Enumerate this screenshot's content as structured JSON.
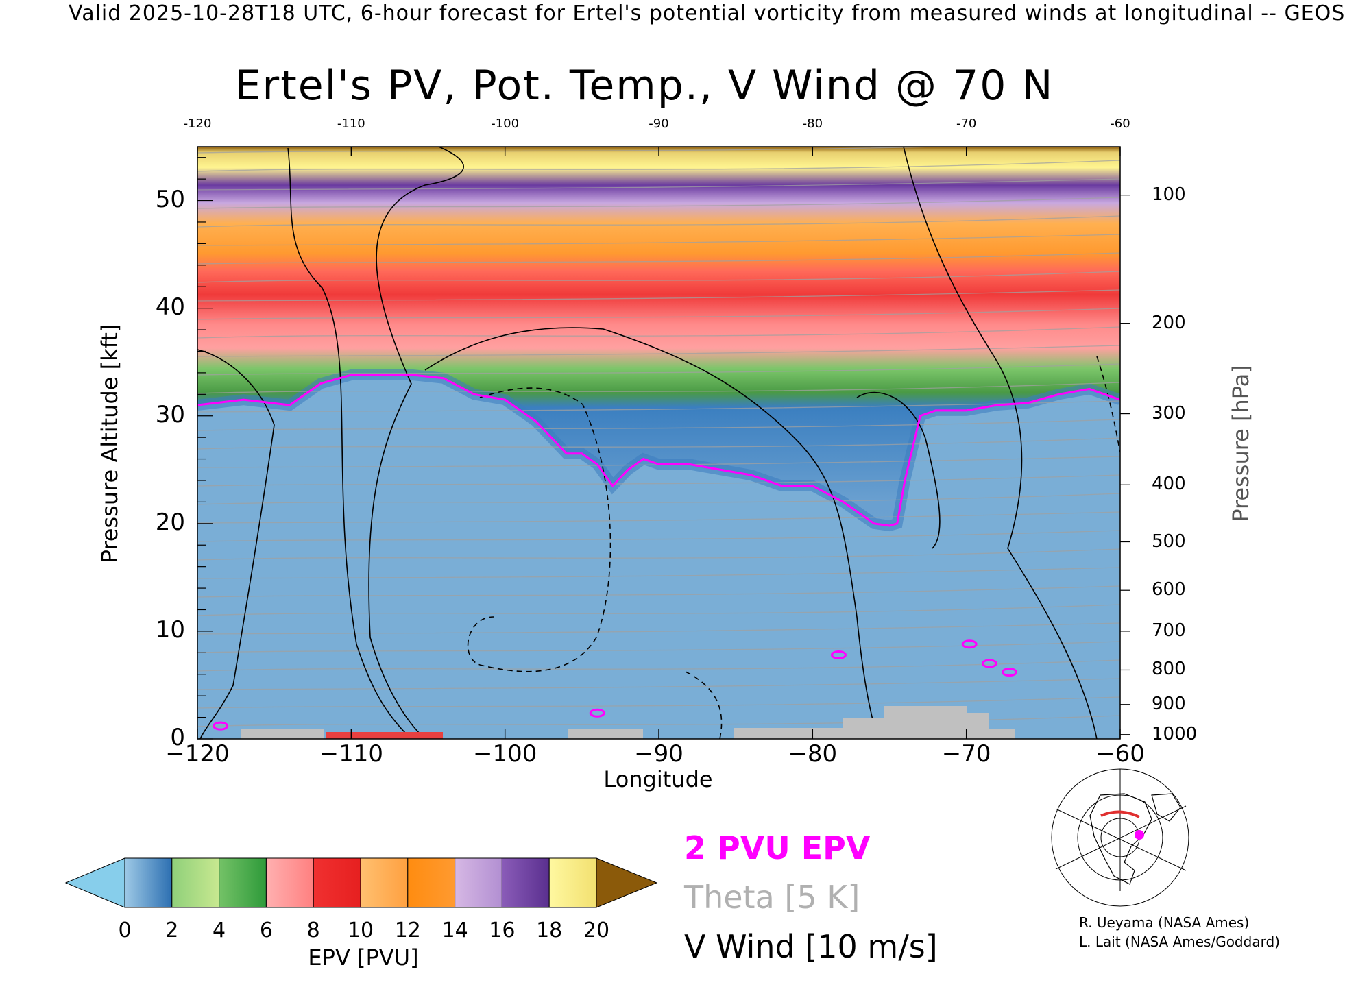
{
  "header": {
    "valid_line": "Valid 2025-10-28T18 UTC, 6-hour forecast for Ertel's potential vorticity from measured winds at longitudinal -- GEOS"
  },
  "chart_data": {
    "type": "heatmap",
    "title": "Ertel's PV, Pot. Temp., V Wind @ 70 N",
    "xlabel": "Longitude",
    "ylabel": "Pressure Altitude [kft]",
    "y2label": "Pressure [hPa]",
    "xlim": [
      -120,
      -60
    ],
    "ylim": [
      0,
      55
    ],
    "x_ticks": [
      -120,
      -110,
      -100,
      -90,
      -80,
      -70,
      -60
    ],
    "x_tick_labels": [
      "−120",
      "−110",
      "−100",
      "−90",
      "−80",
      "−70",
      "−60"
    ],
    "top_tick_labels": [
      "-120",
      "-110",
      "-100",
      "-90",
      "-80",
      "-70",
      "-60"
    ],
    "y_ticks": [
      0,
      10,
      20,
      30,
      40,
      50
    ],
    "y_tick_labels": [
      "0",
      "10",
      "20",
      "30",
      "40",
      "50"
    ],
    "pressure_ticks_hpa": [
      100,
      200,
      300,
      400,
      500,
      600,
      700,
      800,
      900,
      1000
    ],
    "pressure_tick_labels": [
      "100",
      "200",
      "300",
      "400",
      "500",
      "600",
      "700",
      "800",
      "900",
      "1000"
    ],
    "two_pvu_altitude_kft": {
      "x": [
        -120,
        -117,
        -114,
        -112,
        -110,
        -106,
        -104,
        -102,
        -100,
        -98,
        -96,
        -95,
        -94,
        -93,
        -92,
        -91,
        -90,
        -88,
        -86,
        -84,
        -82,
        -80,
        -78,
        -76,
        -75,
        -74.5,
        -74,
        -73,
        -72,
        -70,
        -68,
        -66,
        -64,
        -62,
        -60
      ],
      "y": [
        31,
        31.5,
        31,
        33,
        33.8,
        33.8,
        33.5,
        32,
        31.5,
        29.5,
        26.5,
        26.5,
        25.5,
        23.5,
        25,
        26,
        25.5,
        25.5,
        25,
        24.5,
        23.5,
        23.5,
        22,
        20,
        19.8,
        20,
        24,
        30,
        30.5,
        30.5,
        31,
        31.2,
        32,
        32.5,
        31.5
      ]
    },
    "two_pvu_islands": [
      {
        "x": -78.3,
        "y": 7.8
      },
      {
        "x": -69.8,
        "y": 8.8
      },
      {
        "x": -68.5,
        "y": 7.0
      },
      {
        "x": -67.2,
        "y": 6.2
      },
      {
        "x": -94.0,
        "y": 2.4
      },
      {
        "x": -118.5,
        "y": 1.2
      }
    ],
    "colorbar": {
      "label": "EPV [PVU]",
      "ticks": [
        0,
        2,
        4,
        6,
        8,
        10,
        12,
        14,
        16,
        18,
        20
      ],
      "tick_labels": [
        "0",
        "2",
        "4",
        "6",
        "8",
        "10",
        "12",
        "14",
        "16",
        "18",
        "20"
      ],
      "under_color": "#87ceeb",
      "over_color": "#8b5a0a",
      "colors": [
        [
          "#9ec9e6",
          "#2c6fb1"
        ],
        [
          "#8fd07a",
          "#c8e890"
        ],
        [
          "#74c267",
          "#2e9a3a"
        ],
        [
          "#ffb0b0",
          "#ff8080"
        ],
        [
          "#f03030",
          "#e62020"
        ],
        [
          "#ffc070",
          "#ffa040"
        ],
        [
          "#ff8c10",
          "#ff9a30"
        ],
        [
          "#d6b8e4",
          "#b28fd2"
        ],
        [
          "#8a5cb8",
          "#5a2f8f"
        ],
        [
          "#fff8a0",
          "#f2e070"
        ]
      ]
    },
    "legend": {
      "pvu_label": "2 PVU EPV",
      "theta_label": "Theta [5 K]",
      "wind_label": "V Wind [10 m/s]"
    }
  },
  "credits": {
    "line1": "R. Ueyama (NASA Ames)",
    "line2": "L. Lait (NASA Ames/Goddard)"
  },
  "colors": {
    "pv_contour": "#ff00ff",
    "theta": "#a0a0a0",
    "terrain": "#c0c0c0"
  }
}
